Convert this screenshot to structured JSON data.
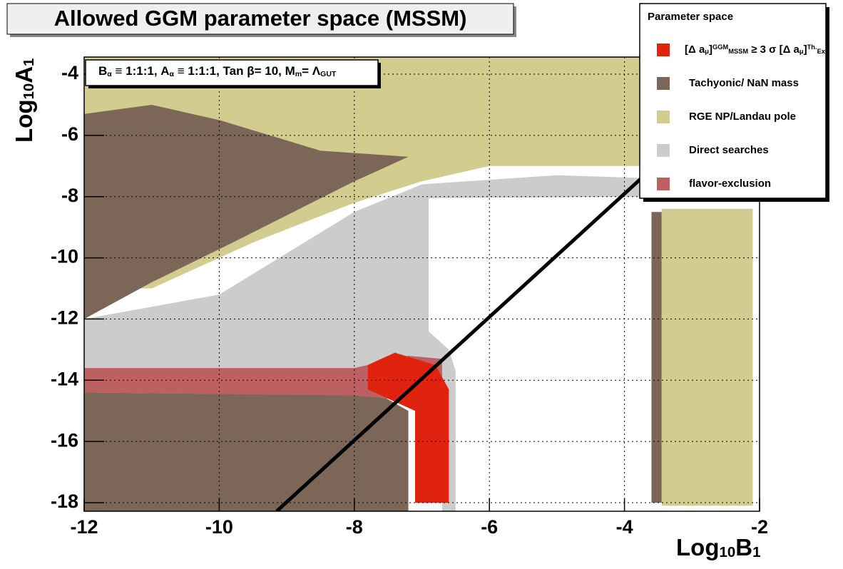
{
  "chart_data": {
    "type": "region",
    "title": "Allowed GGM parameter space (MSSM)",
    "annotation": [
      {
        "text": "B",
        "pos": "normal"
      },
      {
        "text": "α",
        "pos": "sub"
      },
      {
        "text": " ≡ 1:1:1, A",
        "pos": "normal"
      },
      {
        "text": "α",
        "pos": "sub"
      },
      {
        "text": " ≡ 1:1:1, Tan β= 10, M",
        "pos": "normal"
      },
      {
        "text": "m",
        "pos": "sub"
      },
      {
        "text": "= Λ",
        "pos": "normal"
      },
      {
        "text": "GUT",
        "pos": "sub"
      }
    ],
    "xlabel": [
      {
        "text": "Log",
        "pos": "normal"
      },
      {
        "text": "10",
        "pos": "sub"
      },
      {
        "text": "B",
        "pos": "normal"
      },
      {
        "text": "1",
        "pos": "sub"
      }
    ],
    "ylabel": [
      {
        "text": "Log",
        "pos": "normal"
      },
      {
        "text": "10",
        "pos": "sub"
      },
      {
        "text": "A",
        "pos": "normal"
      },
      {
        "text": "1",
        "pos": "sub"
      }
    ],
    "xlim": [
      -12,
      -2
    ],
    "ylim": [
      -18.28,
      -3.44
    ],
    "xticks": [
      -12,
      -10,
      -8,
      -6,
      -4,
      -2
    ],
    "yticks": [
      -4,
      -6,
      -8,
      -10,
      -12,
      -14,
      -16,
      -18
    ],
    "grid": true,
    "legend_title": "Parameter space",
    "regions": [
      {
        "name": "RGE NP/Landau pole",
        "color": "#d2cc8f",
        "polygons": [
          [
            [
              -12,
              -3.44
            ],
            [
              -2.55,
              -3.44
            ],
            [
              -2.55,
              -7.4
            ],
            [
              -3.8,
              -7.0
            ],
            [
              -6,
              -7.0
            ],
            [
              -7,
              -7.5
            ],
            [
              -8,
              -8.2
            ],
            [
              -9.5,
              -9.5
            ],
            [
              -11,
              -11
            ],
            [
              -12,
              -11
            ]
          ],
          [
            [
              -3.45,
              -8.4
            ],
            [
              -2.1,
              -8.4
            ],
            [
              -2.1,
              -18.1
            ],
            [
              -3.45,
              -18.1
            ]
          ]
        ]
      },
      {
        "name": "Tachyonic/ NaN mass",
        "color": "#7b6657",
        "polygons": [
          [
            [
              -12,
              -12
            ],
            [
              -12,
              -5.3
            ],
            [
              -11,
              -5
            ],
            [
              -10,
              -5.5
            ],
            [
              -8.5,
              -6.5
            ],
            [
              -7.2,
              -6.7
            ],
            [
              -8,
              -7.5
            ],
            [
              -9.8,
              -9.5
            ],
            [
              -11,
              -10.8
            ]
          ],
          [
            [
              -12,
              -18.28
            ],
            [
              -7.2,
              -18.28
            ],
            [
              -7.2,
              -15
            ],
            [
              -7.6,
              -14.5
            ],
            [
              -12,
              -14.4
            ]
          ],
          [
            [
              -3.6,
              -8.5
            ],
            [
              -3.45,
              -8.5
            ],
            [
              -3.45,
              -18
            ],
            [
              -3.6,
              -18
            ]
          ]
        ]
      },
      {
        "name": "Direct searches",
        "color": "#cccccc",
        "polygons": [
          [
            [
              -12,
              -13.6
            ],
            [
              -12,
              -12
            ],
            [
              -10,
              -11.2
            ],
            [
              -8,
              -8.5
            ],
            [
              -7,
              -7.6
            ],
            [
              -5,
              -7.3
            ],
            [
              -3.6,
              -7.4
            ],
            [
              -3.6,
              -8
            ],
            [
              -6.9,
              -8.05
            ],
            [
              -6.9,
              -12.4
            ],
            [
              -6.6,
              -13
            ],
            [
              -6.5,
              -13.7
            ],
            [
              -6.5,
              -18.28
            ],
            [
              -6.7,
              -18.28
            ],
            [
              -6.7,
              -14
            ],
            [
              -7.2,
              -13.2
            ],
            [
              -8,
              -13.6
            ]
          ]
        ]
      },
      {
        "name": "flavor-exclusion",
        "color": "#bc6061",
        "polygons": [
          [
            [
              -12,
              -14.4
            ],
            [
              -12,
              -13.6
            ],
            [
              -8,
              -13.6
            ],
            [
              -7.2,
              -13.2
            ],
            [
              -6.7,
              -13.3
            ],
            [
              -6.7,
              -14
            ],
            [
              -7.5,
              -14.6
            ],
            [
              -8,
              -14.5
            ]
          ]
        ]
      },
      {
        "label_parts": [
          {
            "text": "[Δ a",
            "pos": "normal"
          },
          {
            "text": "μ",
            "pos": "sub"
          },
          {
            "text": "]",
            "pos": "normal"
          },
          {
            "text": "GGM",
            "pos": "sup"
          },
          {
            "text": "MSSM",
            "pos": "sub"
          },
          {
            "text": " ≥ 3 σ [Δ a",
            "pos": "normal"
          },
          {
            "text": "μ",
            "pos": "sub"
          },
          {
            "text": "]",
            "pos": "normal"
          },
          {
            "text": "Th.",
            "pos": "sup"
          },
          {
            "text": "Ex.",
            "pos": "sub"
          }
        ],
        "color": "#e0230f",
        "polygons": [
          [
            [
              -7.8,
              -13.5
            ],
            [
              -7.4,
              -13.1
            ],
            [
              -6.8,
              -13.5
            ],
            [
              -6.6,
              -14.3
            ],
            [
              -6.6,
              -18
            ],
            [
              -7.1,
              -18
            ],
            [
              -7.1,
              -15
            ],
            [
              -7.5,
              -14.6
            ],
            [
              -7.8,
              -14.3
            ]
          ]
        ]
      }
    ],
    "legend_order": [
      4,
      1,
      0,
      2,
      3
    ],
    "lines": [
      {
        "color": "#000000",
        "x": [
          -9.15,
          -3.7
        ],
        "y": [
          -18.28,
          -7.3
        ]
      }
    ]
  }
}
